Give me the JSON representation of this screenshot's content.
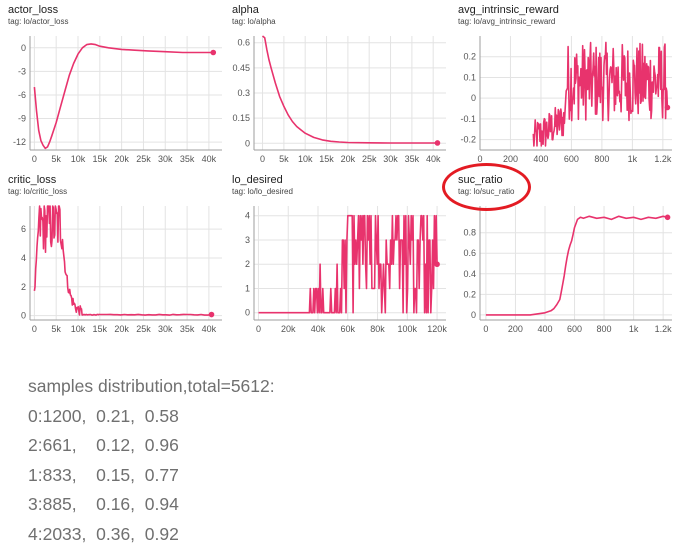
{
  "accent": "#e8336d",
  "charts": [
    {
      "title": "actor_loss",
      "tag": "tag: lo/actor_loss",
      "chart_data": {
        "type": "line",
        "xticks": [
          "0",
          "5k",
          "10k",
          "15k",
          "20k",
          "25k",
          "30k",
          "35k",
          "40k"
        ],
        "yticks": [
          "0",
          "-3",
          "-6",
          "-9",
          "-12"
        ],
        "xlim": [
          -1000,
          43000
        ],
        "ylim": [
          -13,
          1.5
        ],
        "series": [
          {
            "x": [
              0,
              500,
              1000,
              1500,
              2000,
              2500,
              3000,
              3500,
              4000,
              5000,
              6000,
              7000,
              8000,
              9000,
              10000,
              11000,
              12000,
              13000,
              14000,
              15000,
              17000,
              20000,
              23000,
              26000,
              30000,
              34000,
              38000,
              41000
            ],
            "y": [
              -5,
              -8,
              -10.5,
              -11.8,
              -12.4,
              -12.8,
              -12.6,
              -12,
              -11.2,
              -9.5,
              -7.5,
              -5.5,
              -3.5,
              -2,
              -0.8,
              0,
              0.4,
              0.5,
              0.4,
              0.2,
              0,
              -0.2,
              -0.3,
              -0.4,
              -0.5,
              -0.6,
              -0.6,
              -0.6
            ]
          }
        ]
      }
    },
    {
      "title": "alpha",
      "tag": "tag: lo/alpha",
      "chart_data": {
        "type": "line",
        "xticks": [
          "0",
          "5k",
          "10k",
          "15k",
          "20k",
          "25k",
          "30k",
          "35k",
          "40k"
        ],
        "yticks": [
          "0.6",
          "0.45",
          "0.3",
          "0.15",
          "0"
        ],
        "xlim": [
          -2000,
          43000
        ],
        "ylim": [
          -0.04,
          0.64
        ],
        "series": [
          {
            "x": [
              0,
              500,
              1000,
              1500,
              2000,
              3000,
              4000,
              5000,
              6000,
              7000,
              8000,
              9000,
              10000,
              12000,
              14000,
              16000,
              18000,
              20000,
              25000,
              30000,
              35000,
              41000
            ],
            "y": [
              0.7,
              0.63,
              0.56,
              0.5,
              0.45,
              0.36,
              0.28,
              0.22,
              0.17,
              0.13,
              0.1,
              0.08,
              0.06,
              0.035,
              0.02,
              0.012,
              0.008,
              0.005,
              0.003,
              0.002,
              0.002,
              0.002
            ]
          }
        ]
      }
    },
    {
      "title": "avg_intrinsic_reward",
      "tag": "tag: lo/avg_intrinsic_reward",
      "chart_data": {
        "type": "line",
        "xticks": [
          "0",
          "200",
          "400",
          "600",
          "800",
          "1k",
          "1.2k"
        ],
        "yticks": [
          "0.2",
          "0.1",
          "0",
          "-0.1",
          "-0.2"
        ],
        "xlim": [
          0,
          1260
        ],
        "ylim": [
          -0.25,
          0.3
        ],
        "series": [
          {
            "x": [],
            "y": []
          }
        ]
      }
    },
    {
      "title": "critic_loss",
      "tag": "tag: lo/critic_loss",
      "chart_data": {
        "type": "line",
        "xticks": [
          "0",
          "5k",
          "10k",
          "15k",
          "20k",
          "25k",
          "30k",
          "35k",
          "40k"
        ],
        "yticks": [
          "6",
          "4",
          "2",
          "0"
        ],
        "xlim": [
          -1000,
          43000
        ],
        "ylim": [
          -0.3,
          7.6
        ],
        "series": [
          {
            "x": [],
            "y": []
          }
        ]
      }
    },
    {
      "title": "lo_desired",
      "tag": "tag: lo/lo_desired",
      "chart_data": {
        "type": "line",
        "xticks": [
          "0",
          "20k",
          "40k",
          "60k",
          "80k",
          "100k",
          "120k"
        ],
        "yticks": [
          "4",
          "3",
          "2",
          "1",
          "0"
        ],
        "xlim": [
          -3000,
          126000
        ],
        "ylim": [
          -0.3,
          4.4
        ],
        "series": [
          {
            "x": [],
            "y": []
          }
        ]
      }
    },
    {
      "title": "suc_ratio",
      "tag": "tag: lo/suc_ratio",
      "chart_data": {
        "type": "line",
        "xticks": [
          "0",
          "200",
          "400",
          "600",
          "800",
          "1k",
          "1.2k"
        ],
        "yticks": [
          "0.8",
          "0.6",
          "0.4",
          "0.2",
          "0"
        ],
        "xlim": [
          -40,
          1260
        ],
        "ylim": [
          -0.05,
          1.06
        ],
        "series": [
          {
            "x": [
              0,
              100,
              200,
              300,
              400,
              440,
              460,
              480,
              500,
              510,
              520,
              530,
              540,
              550,
              560,
              570,
              580,
              590,
              600,
              620,
              640,
              660,
              700,
              750,
              800,
              850,
              900,
              950,
              1000,
              1050,
              1100,
              1150,
              1200,
              1230
            ],
            "y": [
              0,
              0,
              0,
              0,
              0.02,
              0.04,
              0.06,
              0.1,
              0.15,
              0.22,
              0.3,
              0.38,
              0.48,
              0.56,
              0.63,
              0.68,
              0.72,
              0.78,
              0.85,
              0.93,
              0.95,
              0.94,
              0.96,
              0.94,
              0.95,
              0.93,
              0.96,
              0.94,
              0.95,
              0.93,
              0.95,
              0.94,
              0.96,
              0.95
            ]
          }
        ]
      }
    }
  ],
  "summary": {
    "header": "samples distribution,total=5612:",
    "rows": [
      "0:1200,  0.21,  0.58",
      "2:661,    0.12,  0.96",
      "1:833,    0.15,  0.77",
      "3:885,    0.16,  0.94",
      "4:2033,  0.36,  0.92"
    ]
  }
}
